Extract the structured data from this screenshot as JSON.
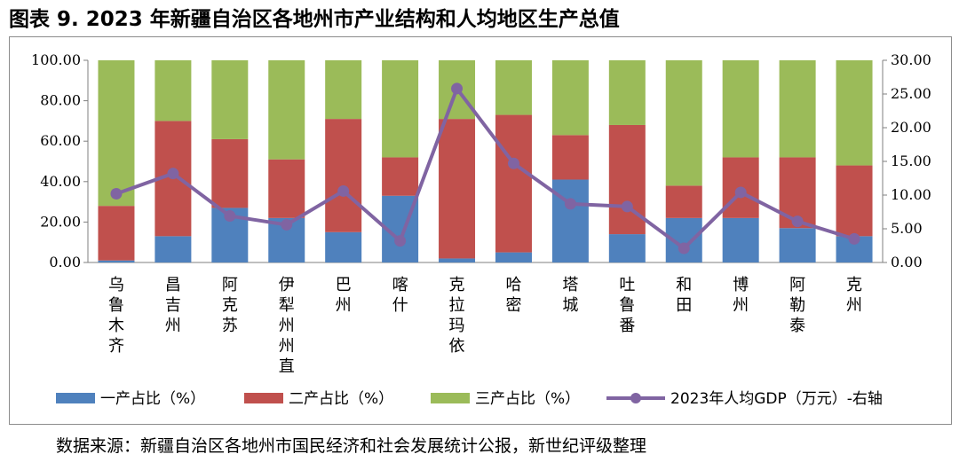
{
  "title": "图表 9. 2023 年新疆自治区各地州市产业结构和人均地区生产总值",
  "source": "数据来源：新疆自治区各地州市国民经济和社会发展统计公报，新世纪评级整理",
  "chart_data": {
    "type": "bar",
    "stacked": true,
    "categories": [
      "乌鲁木齐",
      "昌吉州",
      "阿克苏",
      "伊犁州州直",
      "巴州",
      "喀什",
      "克拉玛依",
      "哈密",
      "塔城",
      "吐鲁番",
      "和田",
      "博州",
      "阿勒泰",
      "克州"
    ],
    "series": [
      {
        "name": "一产占比（%）",
        "type": "bar",
        "axis": "left",
        "color": "#4f81bd",
        "values": [
          1,
          13,
          27,
          22,
          15,
          33,
          2,
          5,
          41,
          14,
          22,
          22,
          17,
          13
        ]
      },
      {
        "name": "二产占比（%）",
        "type": "bar",
        "axis": "left",
        "color": "#c0504d",
        "values": [
          27,
          57,
          34,
          29,
          56,
          19,
          69,
          68,
          22,
          54,
          16,
          30,
          35,
          35
        ]
      },
      {
        "name": "三产占比（%）",
        "type": "bar",
        "axis": "left",
        "color": "#9bbb59",
        "values": [
          72,
          30,
          39,
          49,
          29,
          48,
          29,
          27,
          37,
          32,
          62,
          48,
          48,
          52
        ]
      },
      {
        "name": "2023年人均GDP（万元）-右轴",
        "type": "line",
        "axis": "right",
        "color": "#8064a2",
        "values": [
          10.2,
          13.2,
          6.9,
          5.6,
          10.6,
          3.2,
          25.8,
          14.7,
          8.7,
          8.3,
          2.1,
          10.4,
          6.1,
          3.5
        ]
      }
    ],
    "y_left": {
      "min": 0,
      "max": 100,
      "ticks": [
        "0.00",
        "20.00",
        "40.00",
        "60.00",
        "80.00",
        "100.00"
      ]
    },
    "y_right": {
      "min": 0,
      "max": 30,
      "ticks": [
        "0.00",
        "5.00",
        "10.00",
        "15.00",
        "20.00",
        "25.00",
        "30.00"
      ]
    },
    "grid": false,
    "legend_position": "bottom"
  }
}
